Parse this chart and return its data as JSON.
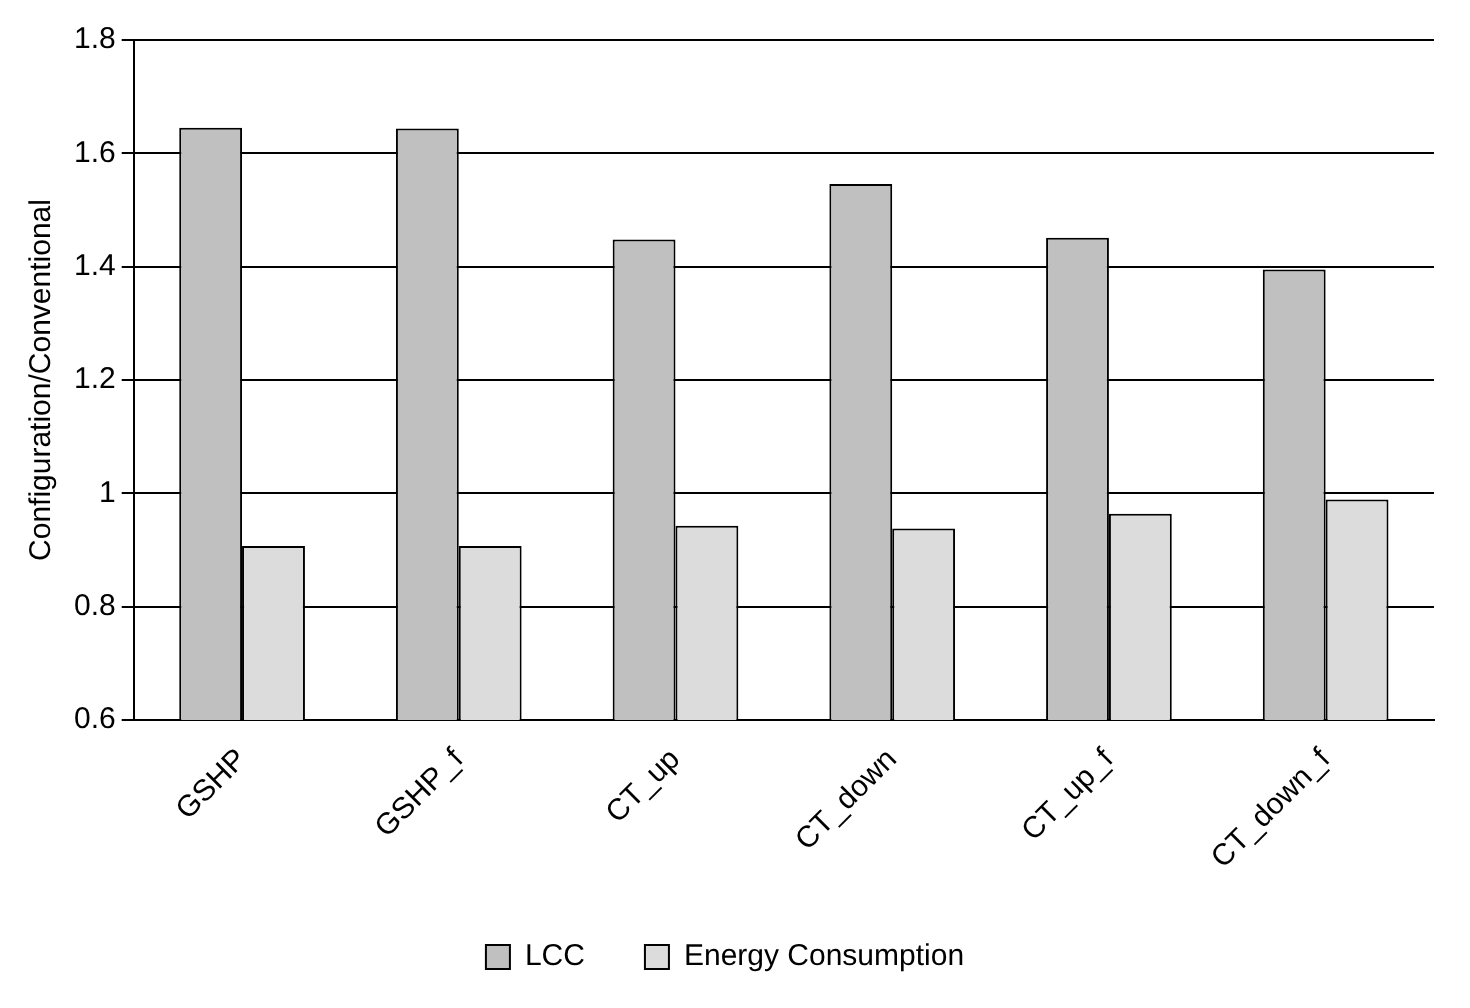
{
  "chart_data": {
    "type": "bar",
    "ylabel": "Configuration/Conventional",
    "categories": [
      "GSHP",
      "GSHP_f",
      "CT_up",
      "CT_down",
      "CT_up_f",
      "CT_down_f"
    ],
    "series": [
      {
        "name": "LCC",
        "color": "#c0c0c0",
        "values": [
          1.645,
          1.644,
          1.448,
          1.546,
          1.451,
          1.395
        ]
      },
      {
        "name": "Energy Consumption",
        "color": "#dcdcdc",
        "values": [
          0.907,
          0.907,
          0.943,
          0.938,
          0.964,
          0.989
        ]
      }
    ],
    "ylim": [
      0.6,
      1.8
    ],
    "yticks": [
      0.6,
      0.8,
      1,
      1.2,
      1.4,
      1.6,
      1.8
    ],
    "grid": "y",
    "legend": "bottom"
  }
}
